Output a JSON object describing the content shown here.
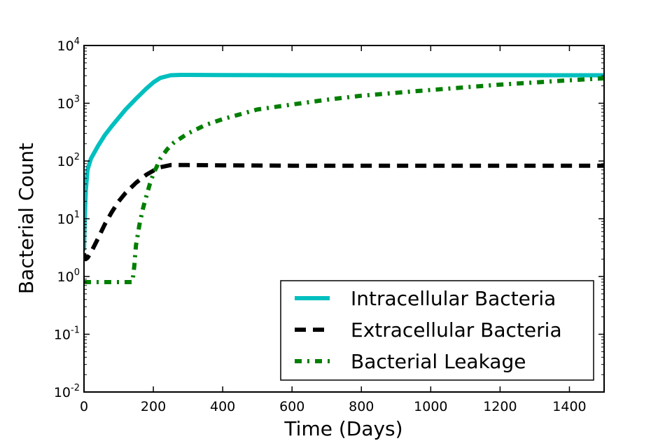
{
  "chart_data": {
    "type": "line",
    "xlabel": "Time (Days)",
    "ylabel": "Bacterial Count",
    "xlim": [
      0,
      1500
    ],
    "ylim": [
      0.01,
      10000
    ],
    "yscale": "log",
    "grid": false,
    "legend_position": "lower-right",
    "x_ticks": [
      0,
      200,
      400,
      600,
      800,
      1000,
      1200,
      1400
    ],
    "y_ticks": [
      {
        "base": "10",
        "exp": "-2",
        "value": 0.01
      },
      {
        "base": "10",
        "exp": "-1",
        "value": 0.1
      },
      {
        "base": "10",
        "exp": "0",
        "value": 1
      },
      {
        "base": "10",
        "exp": "1",
        "value": 10
      },
      {
        "base": "10",
        "exp": "2",
        "value": 100
      },
      {
        "base": "10",
        "exp": "3",
        "value": 1000
      },
      {
        "base": "10",
        "exp": "4",
        "value": 10000
      }
    ],
    "series": [
      {
        "name": "Intracellular Bacteria",
        "color": "#00bfbf",
        "style": "solid",
        "x": [
          0,
          2,
          5,
          10,
          20,
          40,
          60,
          80,
          100,
          120,
          150,
          180,
          200,
          220,
          250,
          280,
          300,
          400,
          600,
          800,
          1000,
          1200,
          1400,
          1500
        ],
        "y": [
          3,
          10,
          30,
          70,
          110,
          180,
          280,
          400,
          560,
          780,
          1200,
          1800,
          2300,
          2750,
          3050,
          3100,
          3100,
          3080,
          3050,
          3050,
          3050,
          3050,
          3050,
          3050
        ]
      },
      {
        "name": "Extracellular Bacteria",
        "color": "#000000",
        "style": "dashed",
        "x": [
          0,
          5,
          10,
          20,
          40,
          60,
          80,
          100,
          120,
          150,
          180,
          200,
          220,
          250,
          300,
          400,
          600,
          800,
          1000,
          1200,
          1400,
          1500
        ],
        "y": [
          2.5,
          2,
          2.1,
          2.6,
          4.5,
          8,
          13,
          20,
          28,
          42,
          58,
          68,
          78,
          85,
          85,
          84,
          83,
          83,
          83,
          83,
          83,
          83
        ]
      },
      {
        "name": "Bacterial Leakage",
        "color": "#007f00",
        "style": "dashdot",
        "x": [
          0,
          50,
          100,
          140,
          145,
          150,
          160,
          170,
          180,
          190,
          200,
          210,
          220,
          240,
          260,
          300,
          350,
          400,
          500,
          600,
          700,
          800,
          1000,
          1200,
          1400,
          1500
        ],
        "y": [
          0.8,
          0.8,
          0.8,
          0.8,
          1.5,
          3.5,
          8,
          15,
          25,
          40,
          60,
          80,
          110,
          160,
          210,
          300,
          420,
          530,
          780,
          950,
          1150,
          1350,
          1700,
          2100,
          2500,
          2700
        ]
      }
    ]
  }
}
